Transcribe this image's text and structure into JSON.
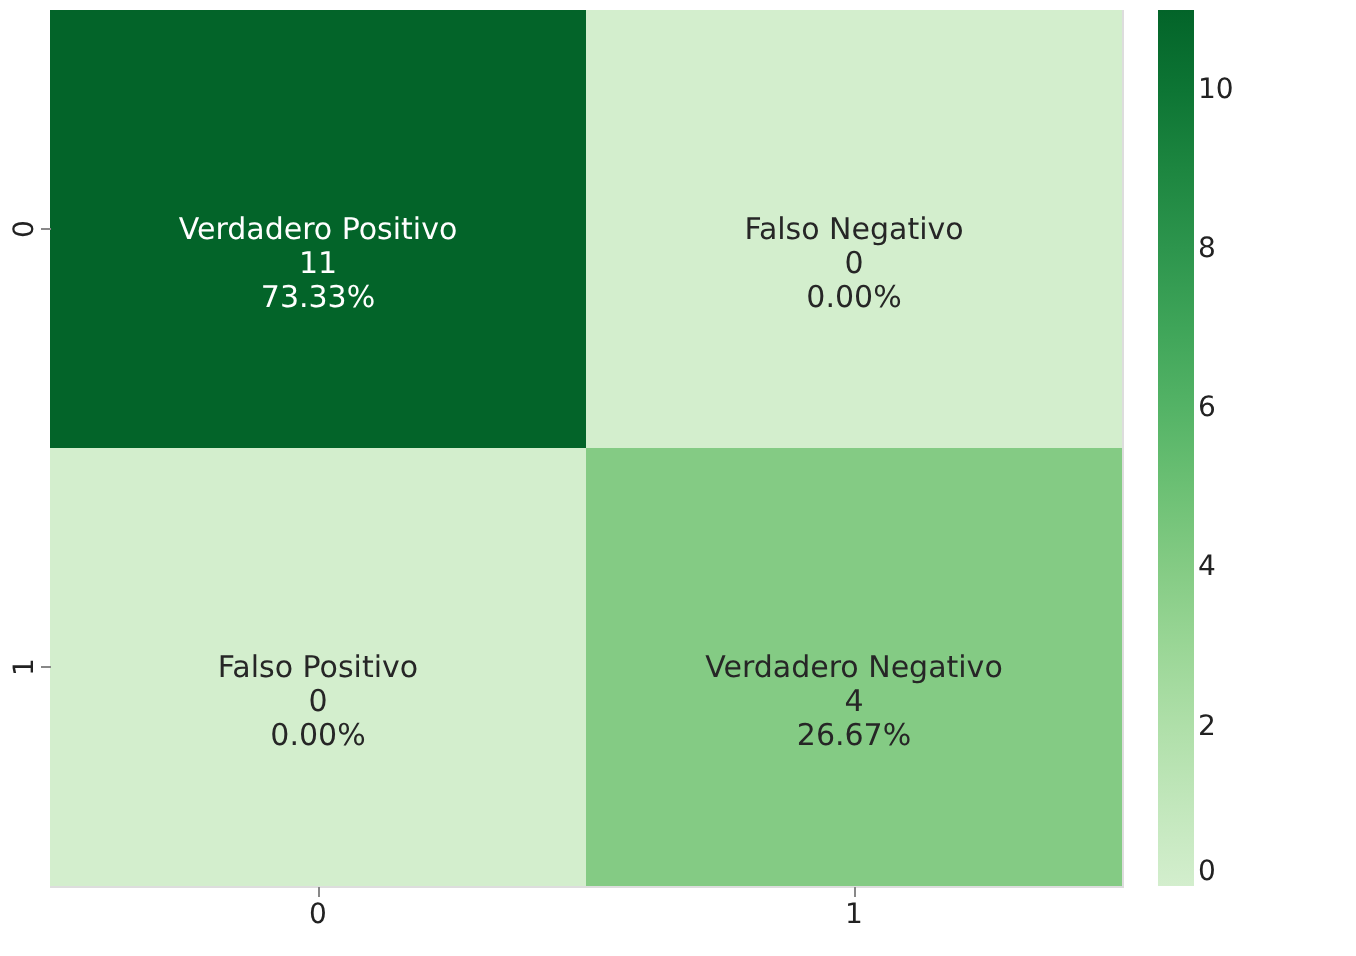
{
  "chart_data": {
    "type": "heatmap",
    "categories": [
      "0",
      "1"
    ],
    "y_categories": [
      "0",
      "1"
    ],
    "cells": [
      [
        11,
        0
      ],
      [
        0,
        4
      ]
    ],
    "cell_labels": [
      [
        "Verdadero Positivo\n11\n73.33%",
        "Falso Negativo\n0\n0.00%"
      ],
      [
        "Falso Positivo\n0\n0.00%",
        "Verdadero Negativo\n4\n26.67%"
      ]
    ],
    "clim": [
      0,
      11
    ],
    "cticks": [
      0,
      2,
      4,
      6,
      8,
      10
    ]
  }
}
